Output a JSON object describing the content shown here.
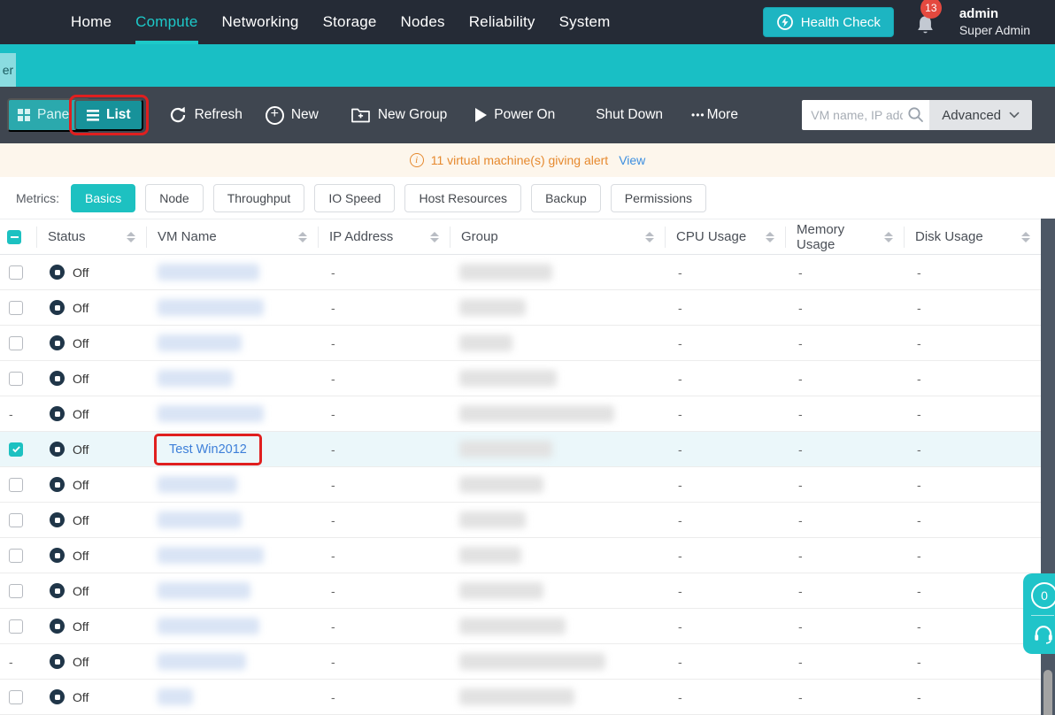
{
  "nav": {
    "items": [
      "Home",
      "Compute",
      "Networking",
      "Storage",
      "Nodes",
      "Reliability",
      "System"
    ],
    "active_item": "Compute",
    "health_check_label": "Health Check",
    "notification_count": "13",
    "username": "admin",
    "user_role": "Super Admin"
  },
  "subnav": {
    "partial_tab": "er"
  },
  "toolbar": {
    "panel_label": "Panel",
    "list_label": "List",
    "refresh_label": "Refresh",
    "new_label": "New",
    "new_group_label": "New Group",
    "power_on_label": "Power On",
    "shut_down_label": "Shut Down",
    "more_dots": "•••",
    "more_label": "More",
    "search_placeholder": "VM name, IP add",
    "advanced_label": "Advanced"
  },
  "alert_bar": {
    "info_glyph": "i",
    "message": "11 virtual machine(s) giving alert",
    "link_label": "View"
  },
  "metrics": {
    "label": "Metrics:",
    "tabs": [
      "Basics",
      "Node",
      "Throughput",
      "IO Speed",
      "Host Resources",
      "Backup",
      "Permissions"
    ],
    "active_tab": "Basics"
  },
  "table": {
    "columns": [
      {
        "label": "Status",
        "sortable": true
      },
      {
        "label": "VM Name",
        "sortable": true
      },
      {
        "label": "IP Address",
        "sortable": true
      },
      {
        "label": "Group",
        "sortable": true
      },
      {
        "label": "CPU Usage",
        "sortable": true
      },
      {
        "label": "Memory Usage",
        "sortable": true
      },
      {
        "label": "Disk Usage",
        "sortable": true
      }
    ],
    "rows": [
      {
        "check": "unchecked",
        "status": "Off",
        "vm_name": null,
        "name_w": 115,
        "ip": "-",
        "group_w": 105,
        "cpu": "-",
        "memory": "-",
        "disk": "-",
        "selected": false,
        "annotated": false
      },
      {
        "check": "unchecked",
        "status": "Off",
        "vm_name": null,
        "name_w": 120,
        "ip": "-",
        "group_w": 75,
        "cpu": "-",
        "memory": "-",
        "disk": "-",
        "selected": false,
        "annotated": false
      },
      {
        "check": "unchecked",
        "status": "Off",
        "vm_name": null,
        "name_w": 95,
        "ip": "-",
        "group_w": 60,
        "cpu": "-",
        "memory": "-",
        "disk": "-",
        "selected": false,
        "annotated": false
      },
      {
        "check": "unchecked",
        "status": "Off",
        "vm_name": null,
        "name_w": 85,
        "ip": "-",
        "group_w": 110,
        "cpu": "-",
        "memory": "-",
        "disk": "-",
        "selected": false,
        "annotated": false
      },
      {
        "check": "dash",
        "status": "Off",
        "vm_name": null,
        "name_w": 120,
        "ip": "-",
        "group_w": 175,
        "cpu": "-",
        "memory": "-",
        "disk": "-",
        "selected": false,
        "annotated": false
      },
      {
        "check": "checked",
        "status": "Off",
        "vm_name": "Test Win2012",
        "name_w": 0,
        "ip": "-",
        "group_w": 105,
        "cpu": "-",
        "memory": "-",
        "disk": "-",
        "selected": true,
        "annotated": true
      },
      {
        "check": "unchecked",
        "status": "Off",
        "vm_name": null,
        "name_w": 90,
        "ip": "-",
        "group_w": 95,
        "cpu": "-",
        "memory": "-",
        "disk": "-",
        "selected": false,
        "annotated": false
      },
      {
        "check": "unchecked",
        "status": "Off",
        "vm_name": null,
        "name_w": 95,
        "ip": "-",
        "group_w": 75,
        "cpu": "-",
        "memory": "-",
        "disk": "-",
        "selected": false,
        "annotated": false
      },
      {
        "check": "unchecked",
        "status": "Off",
        "vm_name": null,
        "name_w": 120,
        "ip": "-",
        "group_w": 70,
        "cpu": "-",
        "memory": "-",
        "disk": "-",
        "selected": false,
        "annotated": false
      },
      {
        "check": "unchecked",
        "status": "Off",
        "vm_name": null,
        "name_w": 105,
        "ip": "-",
        "group_w": 95,
        "cpu": "-",
        "memory": "-",
        "disk": "-",
        "selected": false,
        "annotated": false
      },
      {
        "check": "unchecked",
        "status": "Off",
        "vm_name": null,
        "name_w": 115,
        "ip": "-",
        "group_w": 120,
        "cpu": "-",
        "memory": "-",
        "disk": "-",
        "selected": false,
        "annotated": false
      },
      {
        "check": "dash",
        "status": "Off",
        "vm_name": null,
        "name_w": 100,
        "ip": "-",
        "group_w": 165,
        "cpu": "-",
        "memory": "-",
        "disk": "-",
        "selected": false,
        "annotated": false
      },
      {
        "check": "unchecked",
        "status": "Off",
        "vm_name": null,
        "name_w": 40,
        "ip": "-",
        "group_w": 130,
        "cpu": "-",
        "memory": "-",
        "disk": "-",
        "selected": false,
        "annotated": false
      }
    ]
  },
  "floating_widget": {
    "counter": "0"
  },
  "colors": {
    "accent_teal": "#1dc1c1",
    "nav_dark": "#252b36",
    "toolbar_gray": "#3f4650",
    "annotation_red": "#e01f1f",
    "alert_orange": "#e6892e",
    "alert_bg": "#fdf6ec",
    "link_blue": "#3d7fd9",
    "status_icon_dark": "#203649",
    "selected_row_bg": "#ebf7fa"
  }
}
